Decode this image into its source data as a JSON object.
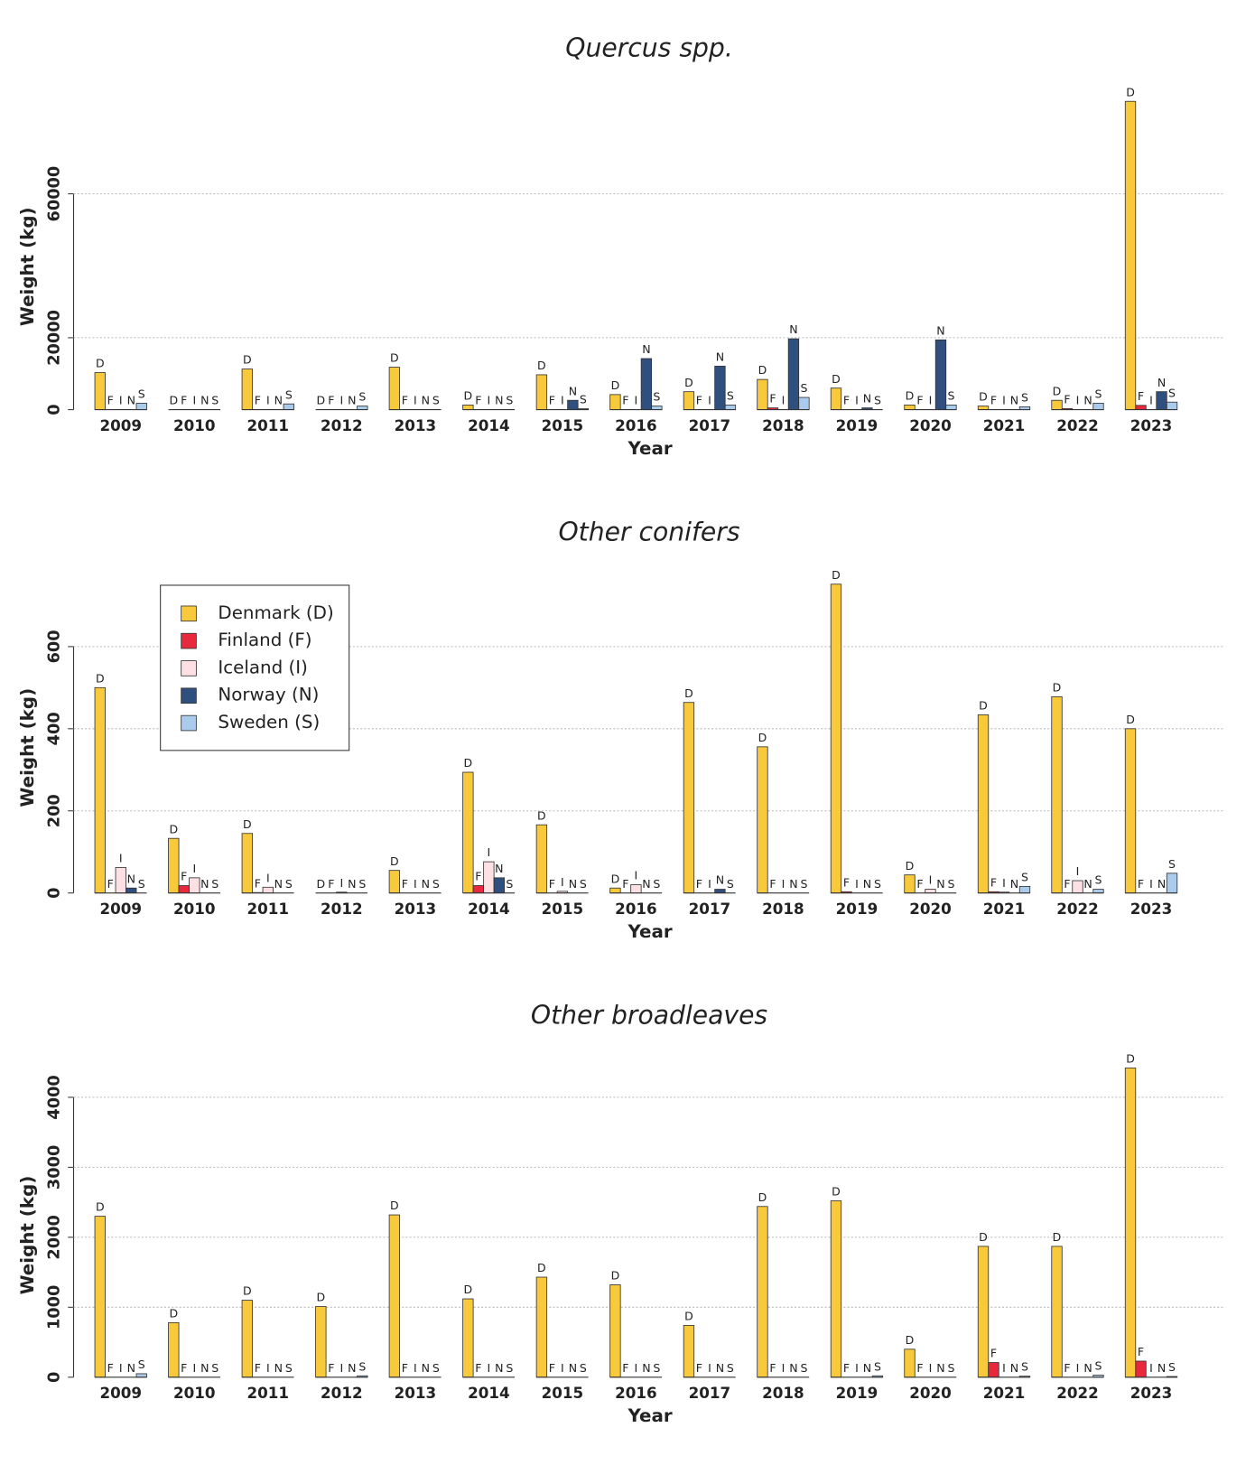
{
  "chart_data": [
    {
      "type": "bar",
      "title": "Quercus spp.",
      "x_label": "Year",
      "y_label": "Weight (kg)",
      "categories": [
        "2009",
        "2010",
        "2011",
        "2012",
        "2013",
        "2014",
        "2015",
        "2016",
        "2017",
        "2018",
        "2019",
        "2020",
        "2021",
        "2022",
        "2023"
      ],
      "ylim": [
        0,
        90000
      ],
      "yticks": [
        0,
        20000,
        60000
      ],
      "grid": true,
      "series": [
        {
          "abbr": "D",
          "color": "#f9c93c",
          "values": [
            10300,
            0,
            11300,
            0,
            11800,
            1300,
            9700,
            4200,
            5000,
            8400,
            6000,
            1300,
            1000,
            2600,
            85700
          ]
        },
        {
          "abbr": "F",
          "color": "#e8283c",
          "values": [
            0,
            0,
            0,
            0,
            0,
            0,
            0,
            0,
            0,
            500,
            0,
            0,
            0,
            300,
            1200
          ]
        },
        {
          "abbr": "I",
          "color": "#fde0e4",
          "values": [
            0,
            0,
            0,
            0,
            0,
            0,
            0,
            0,
            0,
            0,
            0,
            0,
            0,
            0,
            0
          ]
        },
        {
          "abbr": "N",
          "color": "#2f4f7f",
          "values": [
            0,
            0,
            0,
            0,
            0,
            0,
            2600,
            14200,
            12100,
            19700,
            500,
            19400,
            0,
            0,
            5000
          ]
        },
        {
          "abbr": "S",
          "color": "#aacbeb",
          "values": [
            1800,
            0,
            1600,
            1000,
            0,
            0,
            300,
            1000,
            1300,
            3400,
            0,
            1300,
            800,
            1800,
            2100
          ]
        }
      ]
    },
    {
      "type": "bar",
      "title": "Other conifers",
      "x_label": "Year",
      "y_label": "Weight (kg)",
      "categories": [
        "2009",
        "2010",
        "2011",
        "2012",
        "2013",
        "2014",
        "2015",
        "2016",
        "2017",
        "2018",
        "2019",
        "2020",
        "2021",
        "2022",
        "2023"
      ],
      "ylim": [
        0,
        800
      ],
      "yticks": [
        0,
        200,
        400,
        600
      ],
      "grid": true,
      "legend": "upper left",
      "series": [
        {
          "name": "Denmark (D)",
          "abbr": "D",
          "color": "#f9c93c",
          "values": [
            500,
            133,
            145,
            0,
            55,
            294,
            166,
            12,
            464,
            356,
            752,
            44,
            434,
            478,
            400
          ]
        },
        {
          "name": "Finland (F)",
          "abbr": "F",
          "color": "#e8283c",
          "values": [
            0,
            18,
            1,
            0,
            0,
            18,
            0,
            0,
            0,
            0,
            3,
            0,
            3,
            0,
            0
          ]
        },
        {
          "name": "Iceland (I)",
          "abbr": "I",
          "color": "#fde0e4",
          "values": [
            62,
            37,
            14,
            2,
            0,
            76,
            4,
            20,
            0,
            0,
            0,
            9,
            2,
            30,
            0
          ]
        },
        {
          "name": "Norway (N)",
          "abbr": "N",
          "color": "#2f4f7f",
          "values": [
            12,
            0,
            0,
            0,
            0,
            37,
            0,
            0,
            9,
            0,
            0,
            0,
            0,
            0,
            0
          ]
        },
        {
          "name": "Sweden (S)",
          "abbr": "S",
          "color": "#aacbeb",
          "values": [
            0,
            0,
            0,
            0,
            0,
            0,
            0,
            0,
            0,
            0,
            0,
            0,
            16,
            9,
            48
          ]
        }
      ]
    },
    {
      "type": "bar",
      "title": "Other broadleaves",
      "x_label": "Year",
      "y_label": "Weight (kg)",
      "categories": [
        "2009",
        "2010",
        "2011",
        "2012",
        "2013",
        "2014",
        "2015",
        "2016",
        "2017",
        "2018",
        "2019",
        "2020",
        "2021",
        "2022",
        "2023"
      ],
      "ylim": [
        0,
        4600
      ],
      "yticks": [
        0,
        1000,
        2000,
        3000,
        4000
      ],
      "grid": true,
      "series": [
        {
          "abbr": "D",
          "color": "#f9c93c",
          "values": [
            2300,
            780,
            1100,
            1010,
            2320,
            1120,
            1430,
            1320,
            740,
            2440,
            2520,
            400,
            1870,
            1870,
            4420
          ]
        },
        {
          "abbr": "F",
          "color": "#e8283c",
          "values": [
            0,
            0,
            0,
            0,
            0,
            0,
            0,
            0,
            0,
            0,
            0,
            0,
            210,
            0,
            230
          ]
        },
        {
          "abbr": "I",
          "color": "#fde0e4",
          "values": [
            0,
            0,
            0,
            0,
            0,
            0,
            0,
            0,
            0,
            0,
            0,
            0,
            0,
            0,
            0
          ]
        },
        {
          "abbr": "N",
          "color": "#2f4f7f",
          "values": [
            0,
            0,
            0,
            0,
            0,
            0,
            0,
            0,
            0,
            0,
            0,
            0,
            0,
            0,
            0
          ]
        },
        {
          "abbr": "S",
          "color": "#aacbeb",
          "values": [
            50,
            0,
            0,
            20,
            0,
            0,
            0,
            0,
            0,
            0,
            20,
            0,
            15,
            30,
            10
          ]
        }
      ]
    }
  ]
}
